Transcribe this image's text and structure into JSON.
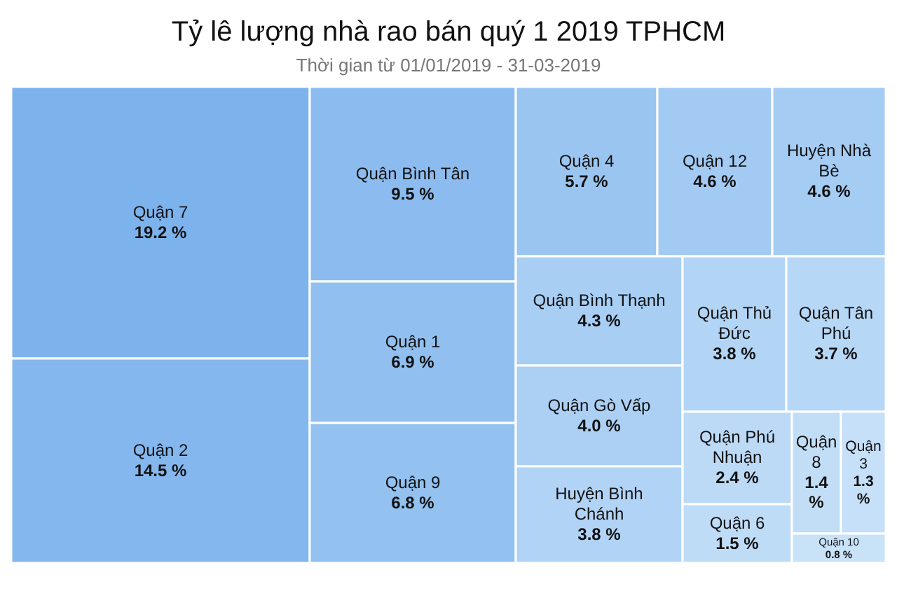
{
  "chart_data": {
    "type": "other",
    "title": "Tỷ lê lượng nhà rao bán quý 1 2019 TPHCM",
    "subtitle": "Thời gian từ 01/01/2019 - 31-03-2019",
    "categories": [
      "Quận 7",
      "Quận 2",
      "Quận Bình Tân",
      "Quận 1",
      "Quận 9",
      "Quận 4",
      "Quận 12",
      "Huyện Nhà Bè",
      "Quận Bình Thạnh",
      "Quận Gò Vấp",
      "Huyện Bình Chánh",
      "Quận Thủ Đức",
      "Quận Tân Phú",
      "Quận Phú Nhuận",
      "Quận 6",
      "Quận 8",
      "Quận 3",
      "Quận 10"
    ],
    "values": [
      19.2,
      14.5,
      9.5,
      6.9,
      6.8,
      5.7,
      4.6,
      4.6,
      4.3,
      4.0,
      3.8,
      3.8,
      3.7,
      2.4,
      1.5,
      1.4,
      1.3,
      0.8
    ],
    "value_labels": [
      "19.2 %",
      "14.5 %",
      "9.5 %",
      "6.9 %",
      "6.8 %",
      "5.7 %",
      "4.6 %",
      "4.6 %",
      "4.3 %",
      "4.0 %",
      "3.8 %",
      "3.8 %",
      "3.7 %",
      "2.4 %",
      "1.5 %",
      "1.4 %",
      "1.3 %",
      "0.8 %"
    ],
    "colors": [
      "#7db3ec",
      "#84b7ee",
      "#8cbcef",
      "#91c0f0",
      "#93c1f0",
      "#9bc5f1",
      "#a3caf3",
      "#a5ccf3",
      "#a8cef4",
      "#abd0f4",
      "#b1d3f5",
      "#b3d5f5",
      "#b6d7f6",
      "#bcdaf6",
      "#bfdcf7",
      "#c2def7",
      "#c5e0f8",
      "#c8e2f8"
    ]
  }
}
